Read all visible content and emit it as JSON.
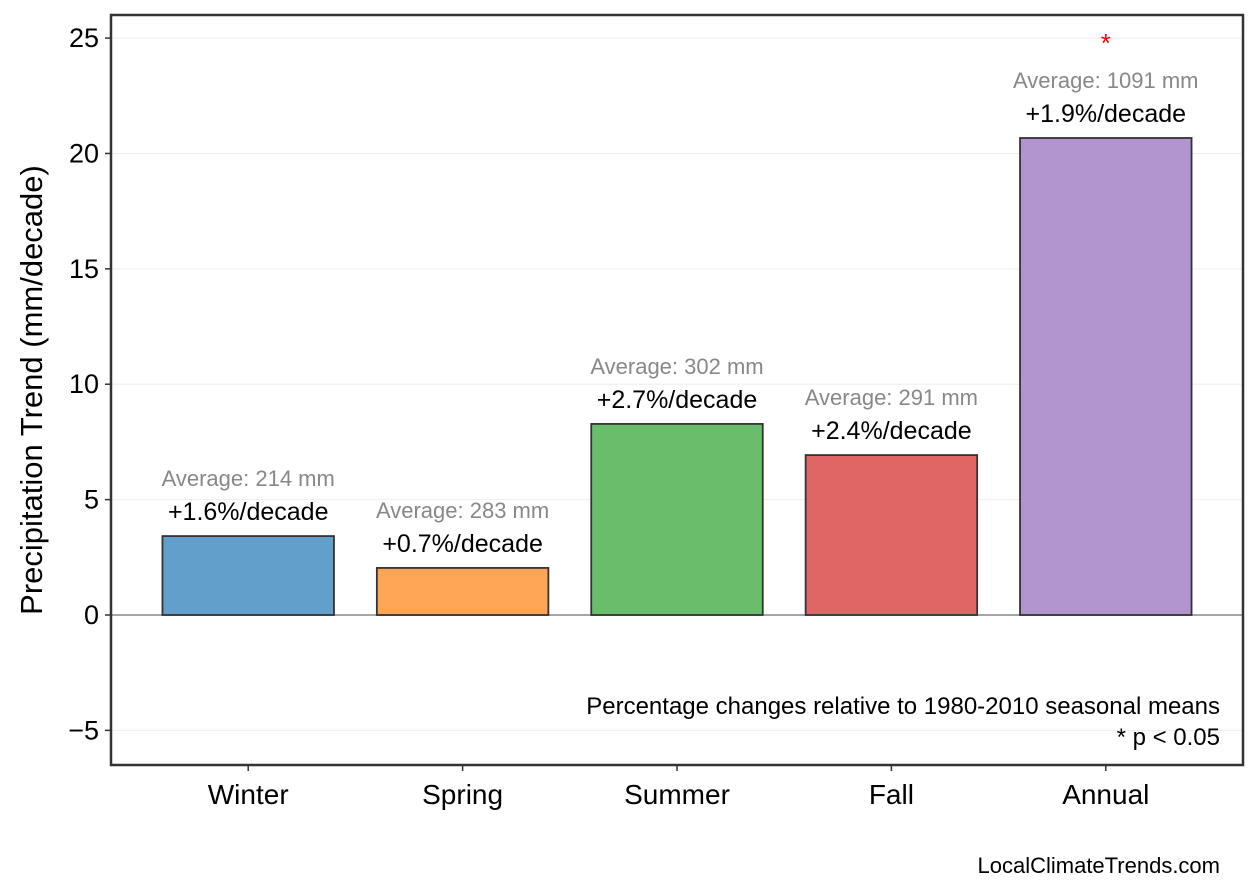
{
  "chart_data": {
    "type": "bar",
    "title": "",
    "xlabel": "",
    "ylabel": "Precipitation Trend (mm/decade)",
    "categories": [
      "Winter",
      "Spring",
      "Summer",
      "Fall",
      "Annual"
    ],
    "values": [
      3.42,
      2.04,
      8.28,
      6.93,
      20.67
    ],
    "colors": [
      "#62a0cb",
      "#ffa556",
      "#6abd6a",
      "#e06666",
      "#b294cf"
    ],
    "percent_labels": [
      "+1.6%/decade",
      "+0.7%/decade",
      "+2.7%/decade",
      "+2.4%/decade",
      "+1.9%/decade"
    ],
    "average_labels": [
      "Average: 214 mm",
      "Average: 283 mm",
      "Average: 302 mm",
      "Average: 291 mm",
      "Average: 1091 mm"
    ],
    "significant": [
      false,
      false,
      false,
      false,
      true
    ],
    "significance_marker": "*",
    "significance_color": "#ff0000",
    "ylim": [
      -6.5,
      26
    ],
    "yticks": [
      -5,
      0,
      5,
      10,
      15,
      20,
      25
    ],
    "ytick_labels": [
      "−5",
      "0",
      "5",
      "10",
      "15",
      "20",
      "25"
    ],
    "grid": true,
    "notes": [
      "Percentage changes relative to 1980-2010 seasonal means",
      "* p < 0.05"
    ],
    "credit": "LocalClimateTrends.com"
  }
}
